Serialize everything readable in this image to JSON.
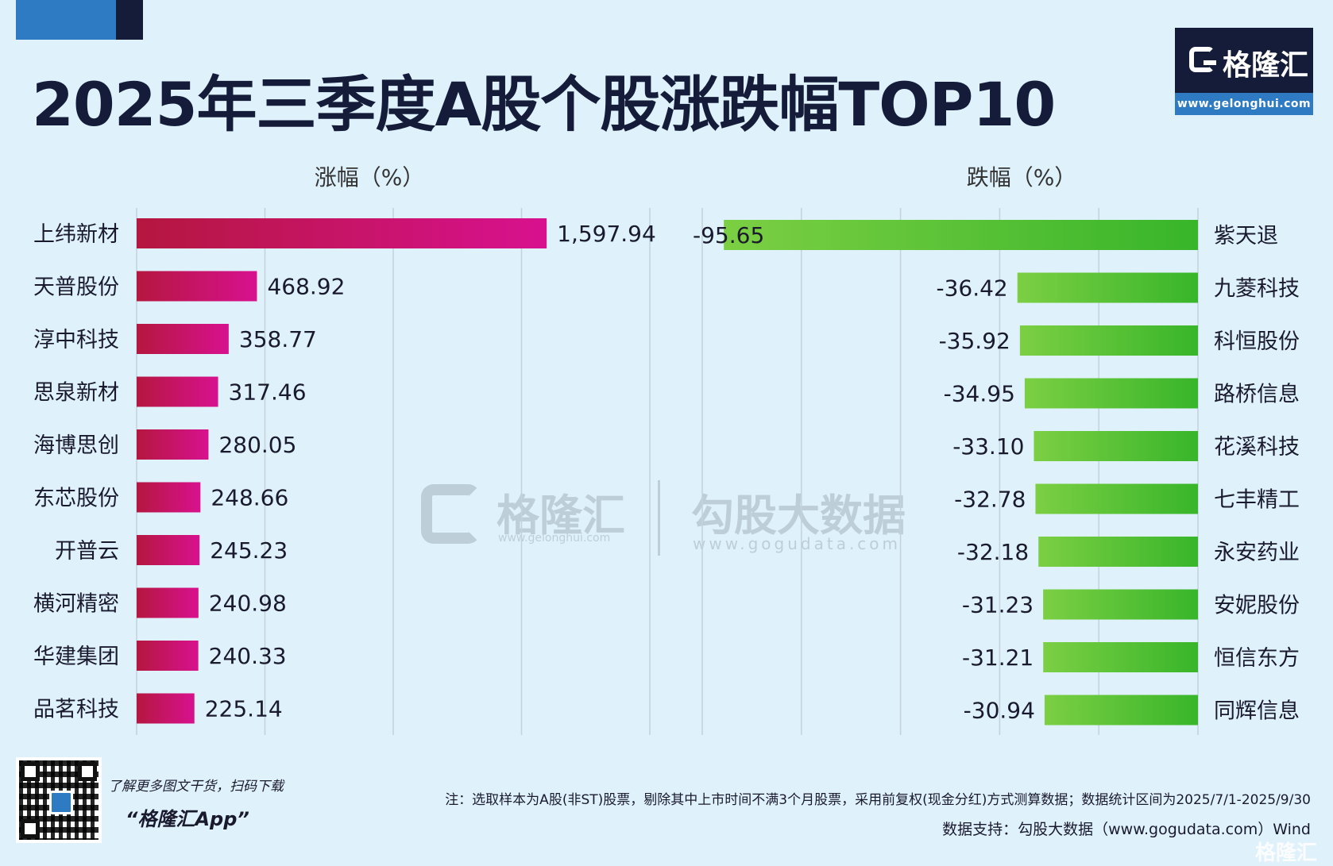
{
  "header": {
    "title": "2025年三季度A股个股涨跌幅TOP10",
    "logo_text": "格隆汇",
    "logo_url": "www.gelonghui.com"
  },
  "chart_data": [
    {
      "type": "bar",
      "orientation": "horizontal",
      "title": "涨幅（%）",
      "categories": [
        "上纬新材",
        "天普股份",
        "淳中科技",
        "思泉新材",
        "海博思创",
        "东芯股份",
        "开普云",
        "横河精密",
        "华建集团",
        "品茗科技"
      ],
      "values": [
        1597.94,
        468.92,
        358.77,
        317.46,
        280.05,
        248.66,
        245.23,
        240.98,
        240.33,
        225.14
      ],
      "value_labels": [
        "1,597.94",
        "468.92",
        "358.77",
        "317.46",
        "280.05",
        "248.66",
        "245.23",
        "240.98",
        "240.33",
        "225.14"
      ],
      "xlim": [
        0,
        2000
      ],
      "grid": true,
      "bar_colors": [
        "#b5173f",
        "#d8118f"
      ]
    },
    {
      "type": "bar",
      "orientation": "horizontal",
      "title": "跌幅（%）",
      "categories": [
        "紫天退",
        "九菱科技",
        "科恒股份",
        "路桥信息",
        "花溪科技",
        "七丰精工",
        "永安药业",
        "安妮股份",
        "恒信东方",
        "同辉信息"
      ],
      "values": [
        -95.65,
        -36.42,
        -35.92,
        -34.95,
        -33.1,
        -32.78,
        -32.18,
        -31.23,
        -31.21,
        -30.94
      ],
      "value_labels": [
        "-95.65",
        "-36.42",
        "-35.92",
        "-34.95",
        "-33.10",
        "-32.78",
        "-32.18",
        "-31.23",
        "-31.21",
        "-30.94"
      ],
      "xlim": [
        -100,
        0
      ],
      "grid": true,
      "bar_colors": [
        "#7ccf43",
        "#38b52a"
      ]
    }
  ],
  "watermark": {
    "brand": "格隆汇",
    "brand_url": "www.gelonghui.com",
    "data_brand": "勾股大数据",
    "data_url": "www.gogudata.com"
  },
  "promo": {
    "tagline": "了解更多图文干货，扫码下载",
    "app": "“格隆汇App”"
  },
  "footer": {
    "note": "注：选取样本为A股(非ST)股票，剔除其中上市时间不满3个月股票，采用前复权(现金分红)方式测算数据；数据统计区间为2025/7/1-2025/9/30",
    "source": "数据支持：勾股大数据（www.gogudata.com）Wind",
    "corner_brand": "格隆汇"
  }
}
